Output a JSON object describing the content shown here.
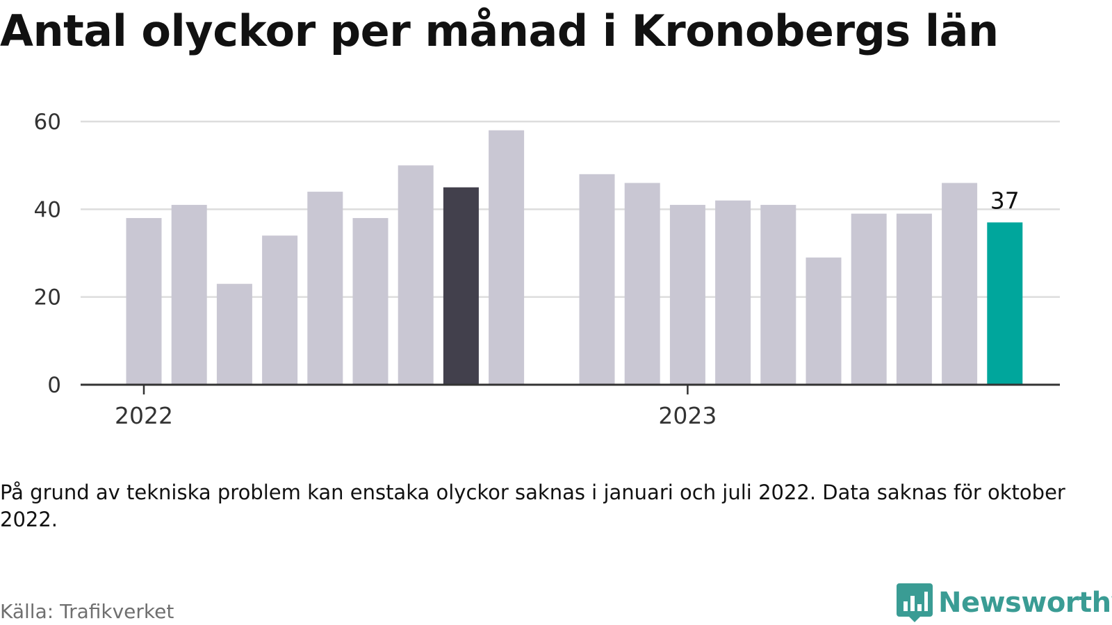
{
  "page_title": "Antal olyckor per månad i Kronobergs län",
  "footnote": "På grund av tekniska problem kan enstaka olyckor saknas i januari och juli 2022. Data saknas för oktober 2022.",
  "source": "Källa: Trafikverket",
  "brand": {
    "name": "Newsworthy",
    "icon": "newsworthy-logo-icon",
    "color": "#3a9c94"
  },
  "colors": {
    "default_bar": "#c9c7d3",
    "highlight_bar": "#42404c",
    "latest_bar": "#00a69c",
    "grid": "#dddddd",
    "axis": "#333333",
    "text": "#111111"
  },
  "chart_data": {
    "type": "bar",
    "title": "Antal olyckor per månad i Kronobergs län",
    "xlabel": "",
    "ylabel": "",
    "ylim": [
      0,
      60
    ],
    "yticks": [
      0,
      20,
      40,
      60
    ],
    "grid": true,
    "legend": "none",
    "x_tick_labels": [
      {
        "label": "2022",
        "at": "2022-01"
      },
      {
        "label": "2023",
        "at": "2023-01"
      }
    ],
    "bars": [
      {
        "month": "2022-01",
        "value": 38,
        "style": "default"
      },
      {
        "month": "2022-02",
        "value": 41,
        "style": "default"
      },
      {
        "month": "2022-03",
        "value": 23,
        "style": "default"
      },
      {
        "month": "2022-04",
        "value": 34,
        "style": "default"
      },
      {
        "month": "2022-05",
        "value": 44,
        "style": "default"
      },
      {
        "month": "2022-06",
        "value": 38,
        "style": "default"
      },
      {
        "month": "2022-07",
        "value": 50,
        "style": "default"
      },
      {
        "month": "2022-08",
        "value": 45,
        "style": "highlight"
      },
      {
        "month": "2022-09",
        "value": 58,
        "style": "default"
      },
      {
        "month": "2022-10",
        "value": null,
        "style": "missing"
      },
      {
        "month": "2022-11",
        "value": 48,
        "style": "default"
      },
      {
        "month": "2022-12",
        "value": 46,
        "style": "default"
      },
      {
        "month": "2023-01",
        "value": 41,
        "style": "default"
      },
      {
        "month": "2023-02",
        "value": 42,
        "style": "default"
      },
      {
        "month": "2023-03",
        "value": 41,
        "style": "default"
      },
      {
        "month": "2023-04",
        "value": 29,
        "style": "default"
      },
      {
        "month": "2023-05",
        "value": 39,
        "style": "default"
      },
      {
        "month": "2023-06",
        "value": 39,
        "style": "default"
      },
      {
        "month": "2023-07",
        "value": 46,
        "style": "default"
      },
      {
        "month": "2023-08",
        "value": 37,
        "style": "latest",
        "data_label": "37"
      }
    ]
  }
}
